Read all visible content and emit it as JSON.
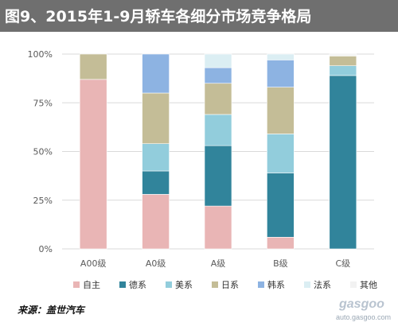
{
  "page": {
    "title": "图9、2015年1-9月轿车各细分市场竞争格局",
    "source": "来源：盖世汽车",
    "watermark_brand": "gasgoo",
    "watermark_url": "auto.gasgoo.com"
  },
  "colors": {
    "title_bar": "#6f6f6f",
    "gridline": "#d9d9d9",
    "axis_text": "#595959"
  },
  "chart_data": {
    "type": "bar",
    "stacked": true,
    "categories": [
      "A00级",
      "A0级",
      "A级",
      "B级",
      "C级"
    ],
    "y_tick_labels": [
      "0%",
      "25%",
      "50%",
      "75%",
      "100%"
    ],
    "ylim": [
      0,
      100
    ],
    "grid": true,
    "legend_position": "bottom",
    "series": [
      {
        "name": "自主",
        "color": "#e9b5b5",
        "values": [
          87,
          28,
          22,
          6,
          0
        ]
      },
      {
        "name": "德系",
        "color": "#31849b",
        "values": [
          0,
          12,
          31,
          33,
          89
        ]
      },
      {
        "name": "美系",
        "color": "#92cddc",
        "values": [
          0,
          14,
          16,
          20,
          5
        ]
      },
      {
        "name": "日系",
        "color": "#c4bd97",
        "values": [
          13,
          26,
          16,
          24,
          5
        ]
      },
      {
        "name": "韩系",
        "color": "#8db3e2",
        "values": [
          0,
          20,
          8,
          14,
          0
        ]
      },
      {
        "name": "法系",
        "color": "#dbeef3",
        "values": [
          0,
          0,
          7,
          3,
          0
        ]
      },
      {
        "name": "其他",
        "color": "#f2f2f2",
        "values": [
          0,
          0,
          0,
          0,
          1
        ]
      }
    ]
  }
}
